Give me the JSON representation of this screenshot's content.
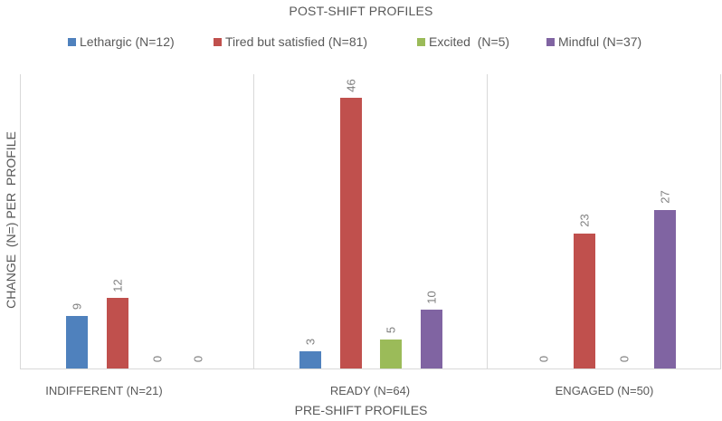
{
  "chart_data": {
    "type": "bar",
    "title": "POST-SHIFT PROFILES",
    "xlabel": "PRE-SHIFT PROFILES",
    "ylabel": "CHANGE  (N=) PER  PROFILE",
    "categories": [
      "INDIFFERENT (N=21)",
      "READY (N=64)",
      "ENGAGED (N=50)"
    ],
    "series": [
      {
        "name": "Lethargic (N=12)",
        "color": "#4f81bd",
        "values": [
          9,
          3,
          0
        ]
      },
      {
        "name": "Tired but satisfied (N=81)",
        "color": "#c0504d",
        "values": [
          12,
          46,
          23
        ]
      },
      {
        "name": "Excited  (N=5)",
        "color": "#9bbb59",
        "values": [
          0,
          5,
          0
        ]
      },
      {
        "name": "Mindful (N=37)",
        "color": "#8064a2",
        "values": [
          0,
          10,
          27
        ]
      }
    ],
    "data_labels": true,
    "ylim": [
      0,
      50
    ],
    "grid": "vertical category separators only",
    "legend_position": "top",
    "y_axis_ticks_visible": false
  }
}
